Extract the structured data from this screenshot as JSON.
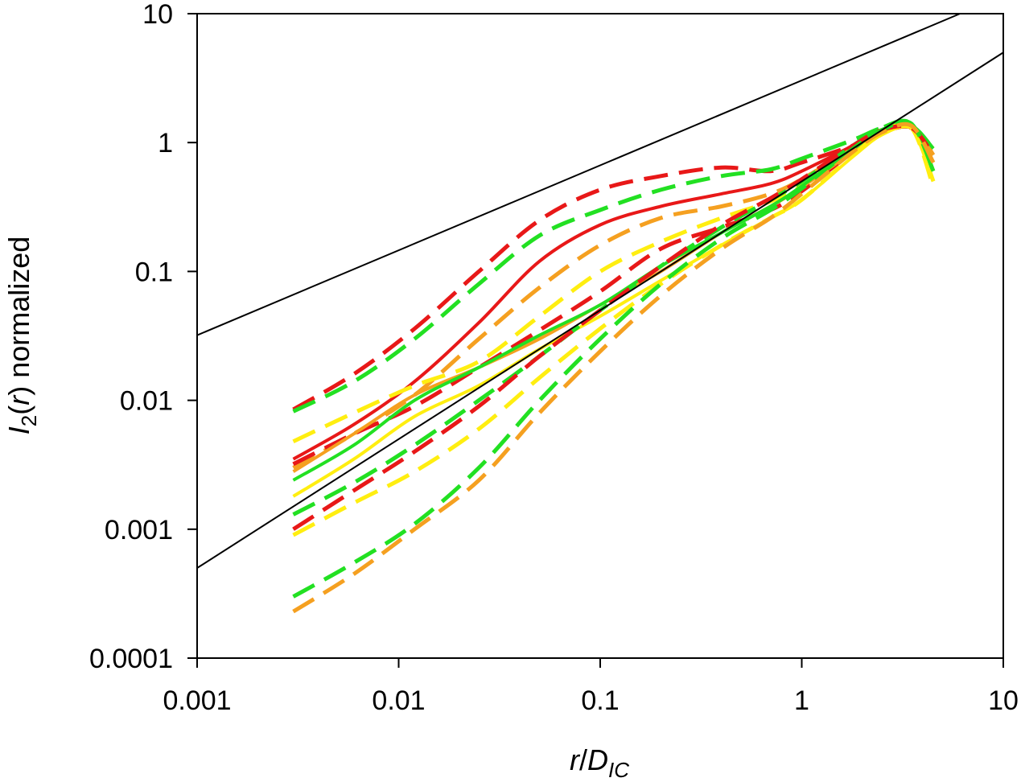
{
  "chart_data": {
    "type": "line",
    "x_scale": "log",
    "y_scale": "log",
    "xlim": [
      0.001,
      10
    ],
    "ylim": [
      0.0001,
      10
    ],
    "grid": false,
    "legend": "none",
    "xlabel": {
      "main": "r",
      "slash": "/",
      "d": "D",
      "sub": "IC"
    },
    "ylabel": {
      "main": "I",
      "sub": "2",
      "mid": "(",
      "r": "r",
      "end": ") normalized"
    },
    "x_ticks": [
      {
        "value": 0.001,
        "label": "0.001"
      },
      {
        "value": 0.01,
        "label": "0.01"
      },
      {
        "value": 0.1,
        "label": "0.1"
      },
      {
        "value": 1,
        "label": "1"
      },
      {
        "value": 10,
        "label": "10"
      }
    ],
    "y_ticks": [
      {
        "value": 0.0001,
        "label": "0.0001"
      },
      {
        "value": 0.001,
        "label": "0.001"
      },
      {
        "value": 0.01,
        "label": "0.01"
      },
      {
        "value": 0.1,
        "label": "0.1"
      },
      {
        "value": 1,
        "label": "1"
      },
      {
        "value": 10,
        "label": "10"
      }
    ],
    "reference_lines": [
      {
        "color": "#000000",
        "x": [
          0.001,
          6.1
        ],
        "y": [
          0.032,
          10
        ]
      },
      {
        "color": "#000000",
        "x": [
          0.001,
          10
        ],
        "y": [
          0.0005,
          5
        ]
      }
    ],
    "series": [
      {
        "color": "#e81818",
        "style": "dashed",
        "x": [
          0.003,
          0.006,
          0.012,
          0.025,
          0.05,
          0.1,
          0.2,
          0.4,
          0.7,
          1.0,
          1.8,
          2.5,
          3.5,
          4.5
        ],
        "y": [
          0.0085,
          0.016,
          0.036,
          0.1,
          0.25,
          0.43,
          0.55,
          0.64,
          0.6,
          0.7,
          0.95,
          1.2,
          1.3,
          0.8
        ]
      },
      {
        "color": "#22e022",
        "style": "dashed",
        "x": [
          0.003,
          0.006,
          0.012,
          0.025,
          0.05,
          0.1,
          0.2,
          0.4,
          0.7,
          1.0,
          1.8,
          2.5,
          3.5,
          4.5
        ],
        "y": [
          0.0082,
          0.014,
          0.03,
          0.08,
          0.19,
          0.3,
          0.43,
          0.55,
          0.62,
          0.75,
          1.05,
          1.3,
          1.4,
          0.7
        ]
      },
      {
        "color": "#e81818",
        "style": "solid",
        "x": [
          0.003,
          0.006,
          0.012,
          0.025,
          0.05,
          0.1,
          0.2,
          0.4,
          0.7,
          1.0,
          1.8,
          2.5,
          3.5,
          4.5
        ],
        "y": [
          0.0035,
          0.0065,
          0.014,
          0.04,
          0.12,
          0.23,
          0.32,
          0.4,
          0.48,
          0.6,
          0.95,
          1.25,
          1.35,
          0.7
        ]
      },
      {
        "color": "#f5a020",
        "style": "dashed",
        "x": [
          0.003,
          0.006,
          0.012,
          0.025,
          0.05,
          0.1,
          0.2,
          0.4,
          0.7,
          1.0,
          1.8,
          2.5,
          3.5,
          4.5
        ],
        "y": [
          0.003,
          0.0055,
          0.011,
          0.03,
          0.075,
          0.16,
          0.26,
          0.32,
          0.4,
          0.52,
          0.9,
          1.2,
          1.35,
          0.8
        ]
      },
      {
        "color": "#ffee10",
        "style": "dashed",
        "x": [
          0.003,
          0.006,
          0.012,
          0.025,
          0.05,
          0.1,
          0.2,
          0.4,
          0.7,
          1.0,
          1.8,
          2.5,
          3.5,
          4.5
        ],
        "y": [
          0.0048,
          0.008,
          0.013,
          0.02,
          0.045,
          0.1,
          0.17,
          0.26,
          0.35,
          0.46,
          0.85,
          1.2,
          1.3,
          0.5
        ]
      },
      {
        "color": "#e81818",
        "style": "dashed",
        "x": [
          0.003,
          0.006,
          0.012,
          0.025,
          0.05,
          0.1,
          0.2,
          0.4,
          0.7,
          1.0,
          1.8,
          2.5,
          3.5,
          4.5
        ],
        "y": [
          0.0032,
          0.0055,
          0.009,
          0.018,
          0.035,
          0.07,
          0.15,
          0.22,
          0.3,
          0.42,
          0.85,
          1.2,
          1.3,
          0.9
        ]
      },
      {
        "color": "#f5a020",
        "style": "solid",
        "x": [
          0.003,
          0.006,
          0.012,
          0.025,
          0.05,
          0.1,
          0.2,
          0.4,
          0.7,
          1.0,
          1.8,
          2.5,
          3.5,
          4.5
        ],
        "y": [
          0.0028,
          0.0055,
          0.011,
          0.018,
          0.03,
          0.055,
          0.1,
          0.2,
          0.32,
          0.45,
          0.85,
          1.2,
          1.3,
          0.9
        ]
      },
      {
        "color": "#22e022",
        "style": "solid",
        "x": [
          0.003,
          0.006,
          0.012,
          0.025,
          0.05,
          0.1,
          0.2,
          0.4,
          0.7,
          1.0,
          1.8,
          2.5,
          3.5,
          4.5
        ],
        "y": [
          0.0024,
          0.0045,
          0.01,
          0.018,
          0.032,
          0.055,
          0.11,
          0.2,
          0.32,
          0.46,
          0.9,
          1.25,
          1.35,
          0.9
        ]
      },
      {
        "color": "#ffee10",
        "style": "solid",
        "x": [
          0.003,
          0.006,
          0.012,
          0.025,
          0.05,
          0.1,
          0.2,
          0.4,
          0.7,
          1.0,
          1.8,
          2.5,
          3.5,
          4.5
        ],
        "y": [
          0.0018,
          0.0035,
          0.0075,
          0.013,
          0.025,
          0.045,
          0.085,
          0.16,
          0.26,
          0.36,
          0.78,
          1.15,
          1.3,
          0.7
        ]
      },
      {
        "color": "#22e022",
        "style": "dashed",
        "x": [
          0.003,
          0.006,
          0.012,
          0.025,
          0.05,
          0.1,
          0.2,
          0.4,
          0.7,
          1.0,
          1.8,
          2.5,
          3.5,
          4.5
        ],
        "y": [
          0.0013,
          0.0023,
          0.0045,
          0.01,
          0.022,
          0.05,
          0.11,
          0.22,
          0.36,
          0.5,
          0.95,
          1.3,
          1.4,
          0.6
        ]
      },
      {
        "color": "#ffee10",
        "style": "dashed",
        "x": [
          0.003,
          0.006,
          0.012,
          0.025,
          0.05,
          0.1,
          0.2,
          0.4,
          0.7,
          1.0,
          1.8,
          2.5,
          3.5,
          4.5
        ],
        "y": [
          0.0009,
          0.0016,
          0.0028,
          0.006,
          0.015,
          0.036,
          0.08,
          0.16,
          0.26,
          0.36,
          0.8,
          1.2,
          1.3,
          0.45
        ]
      },
      {
        "color": "#e81818",
        "style": "dashed",
        "x": [
          0.003,
          0.006,
          0.012,
          0.025,
          0.05,
          0.1,
          0.2,
          0.4,
          0.7,
          1.0,
          1.8,
          2.5,
          3.5,
          4.5
        ],
        "y": [
          0.001,
          0.002,
          0.004,
          0.009,
          0.022,
          0.05,
          0.11,
          0.23,
          0.37,
          0.52,
          0.95,
          1.25,
          1.3,
          0.8
        ]
      },
      {
        "color": "#22e022",
        "style": "dashed",
        "x": [
          0.003,
          0.006,
          0.012,
          0.025,
          0.05,
          0.1,
          0.2,
          0.4,
          0.7,
          1.0,
          1.8,
          2.5,
          3.5,
          4.5
        ],
        "y": [
          0.0003,
          0.00055,
          0.0011,
          0.003,
          0.01,
          0.03,
          0.08,
          0.18,
          0.3,
          0.44,
          0.9,
          1.25,
          1.4,
          0.6
        ]
      },
      {
        "color": "#f5a020",
        "style": "dashed",
        "x": [
          0.003,
          0.006,
          0.012,
          0.025,
          0.05,
          0.1,
          0.2,
          0.4,
          0.7,
          1.0,
          1.8,
          2.5,
          3.5,
          4.5
        ],
        "y": [
          0.00023,
          0.00045,
          0.001,
          0.0024,
          0.008,
          0.024,
          0.065,
          0.15,
          0.26,
          0.4,
          0.85,
          1.2,
          1.35,
          0.7
        ]
      }
    ]
  }
}
